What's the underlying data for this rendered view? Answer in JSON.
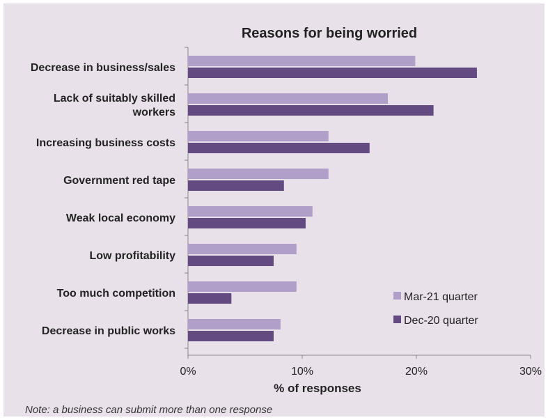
{
  "note": "Note: a business can submit more than one response",
  "colors": {
    "background": "#e9e1ea",
    "mar21": "#b09fc8",
    "dec20": "#634a80",
    "axis": "#888888",
    "text": "#222222"
  },
  "chart_data": {
    "type": "bar",
    "orientation": "horizontal",
    "title": "Reasons for being worried",
    "xlabel": "% of responses",
    "ylabel": "",
    "xlim": [
      0,
      30
    ],
    "xticks": [
      "0%",
      "10%",
      "20%",
      "30%"
    ],
    "xtick_values": [
      0,
      10,
      20,
      30
    ],
    "grid": false,
    "legend_position": "bottom-right",
    "categories": [
      [
        "Decrease in business/sales"
      ],
      [
        "Lack of suitably skilled",
        "workers"
      ],
      [
        "Increasing business costs"
      ],
      [
        "Government red tape"
      ],
      [
        "Weak local economy"
      ],
      [
        "Low profitability"
      ],
      [
        "Too much competition"
      ],
      [
        "Decrease in public works"
      ]
    ],
    "series": [
      {
        "name": "Mar-21 quarter",
        "color": "#b09fc8",
        "values": [
          19.9,
          17.5,
          12.3,
          12.3,
          10.9,
          9.5,
          9.5,
          8.1
        ]
      },
      {
        "name": "Dec-20 quarter",
        "color": "#634a80",
        "values": [
          25.3,
          21.5,
          15.9,
          8.4,
          10.3,
          7.5,
          3.8,
          7.5
        ]
      }
    ]
  }
}
